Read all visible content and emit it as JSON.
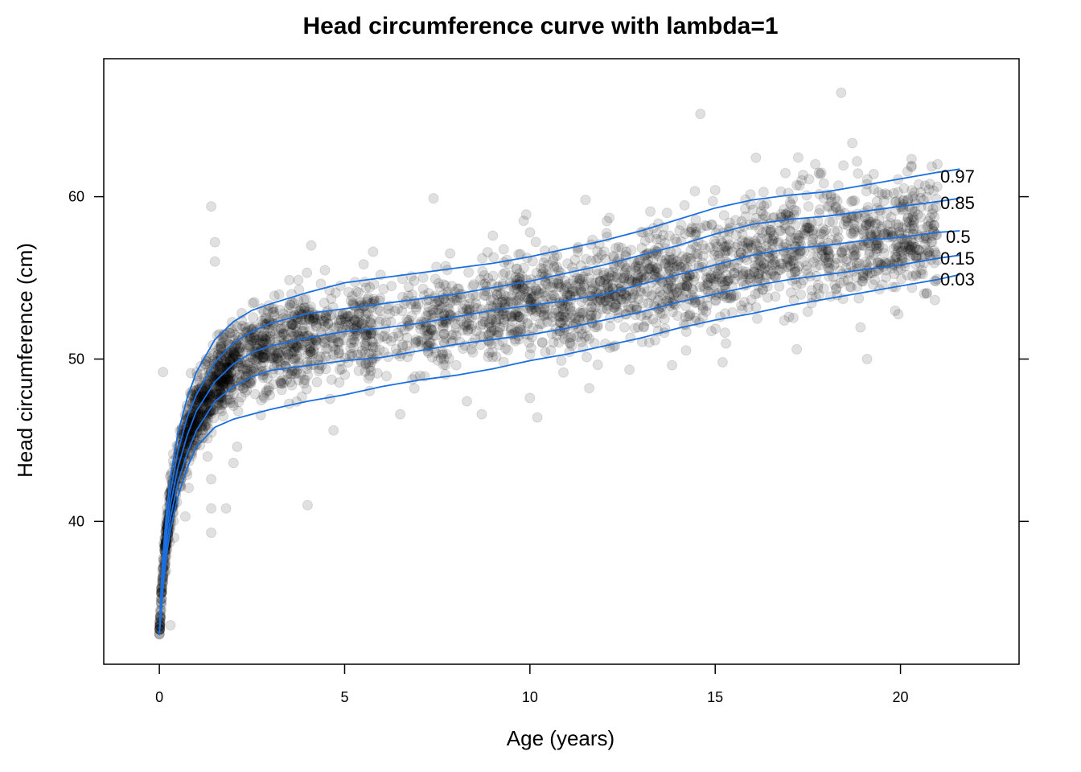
{
  "chart_data": {
    "type": "scatter",
    "title": "Head circumference curve with lambda=1",
    "xlabel": "Age (years)",
    "ylabel": "Head circumference (cm)",
    "xlim": [
      -1.5,
      23.2
    ],
    "ylim": [
      31.2,
      68.5
    ],
    "x_ticks": [
      0,
      5,
      10,
      15,
      20
    ],
    "x_tick_labels": [
      "0",
      "5",
      "10",
      "15",
      "20"
    ],
    "y_ticks": [
      40,
      50,
      60
    ],
    "y_tick_labels": [
      "40",
      "50",
      "60"
    ],
    "grid": false,
    "legend": "none",
    "point_color": "#000000",
    "point_opacity": 0.12,
    "curve_color": "#1a6fe0",
    "outlier_points": [
      {
        "x": 18.4,
        "y": 66.4
      },
      {
        "x": 14.6,
        "y": 65.1
      },
      {
        "x": 18.7,
        "y": 63.3
      },
      {
        "x": 16.1,
        "y": 62.4
      },
      {
        "x": 1.4,
        "y": 59.4
      },
      {
        "x": 1.5,
        "y": 57.2
      },
      {
        "x": 1.5,
        "y": 56.0
      },
      {
        "x": 4.1,
        "y": 57.0
      },
      {
        "x": 7.4,
        "y": 59.9
      },
      {
        "x": 9.9,
        "y": 58.9
      },
      {
        "x": 11.5,
        "y": 59.8
      },
      {
        "x": 4.0,
        "y": 41.0
      },
      {
        "x": 1.4,
        "y": 39.3
      },
      {
        "x": 1.8,
        "y": 40.8
      },
      {
        "x": 1.4,
        "y": 40.8
      },
      {
        "x": 2.0,
        "y": 43.6
      },
      {
        "x": 4.7,
        "y": 45.6
      },
      {
        "x": 10.2,
        "y": 46.4
      },
      {
        "x": 6.5,
        "y": 46.6
      },
      {
        "x": 8.7,
        "y": 46.6
      },
      {
        "x": 10.0,
        "y": 47.6
      },
      {
        "x": 0.3,
        "y": 33.6
      },
      {
        "x": 0.0,
        "y": 33.8
      },
      {
        "x": 0.1,
        "y": 49.2
      },
      {
        "x": 1.4,
        "y": 42.6
      },
      {
        "x": 19.1,
        "y": 50.0
      },
      {
        "x": 15.2,
        "y": 49.8
      },
      {
        "x": 17.2,
        "y": 50.6
      },
      {
        "x": 11.6,
        "y": 48.2
      },
      {
        "x": 8.3,
        "y": 47.4
      },
      {
        "x": 1.3,
        "y": 44.0
      },
      {
        "x": 2.1,
        "y": 44.6
      },
      {
        "x": 0.7,
        "y": 40.3
      },
      {
        "x": 0.4,
        "y": 39.0
      },
      {
        "x": 21.0,
        "y": 62.0
      },
      {
        "x": 20.3,
        "y": 61.9
      },
      {
        "x": 17.7,
        "y": 62.0
      },
      {
        "x": 15.0,
        "y": 60.4
      },
      {
        "x": 13.7,
        "y": 59.0
      },
      {
        "x": 9.0,
        "y": 57.6
      }
    ],
    "series": [
      {
        "name": "0.97",
        "x": [
          0,
          0.05,
          0.1,
          0.2,
          0.3,
          0.5,
          0.75,
          1.0,
          1.5,
          2.0,
          2.5,
          3,
          4,
          5,
          6,
          7,
          8,
          9,
          10,
          11,
          12,
          13,
          14,
          15,
          16,
          17,
          18,
          19,
          20,
          21,
          21.6
        ],
        "y": [
          33.0,
          36.0,
          38.0,
          40.7,
          42.7,
          45.4,
          47.6,
          49.2,
          51.2,
          52.3,
          53.0,
          53.4,
          54.1,
          54.7,
          55.0,
          55.3,
          55.6,
          55.9,
          56.3,
          56.8,
          57.3,
          57.9,
          58.6,
          59.3,
          59.8,
          60.1,
          60.3,
          60.7,
          61.1,
          61.5,
          61.7
        ]
      },
      {
        "name": "0.85",
        "x": [
          0,
          0.05,
          0.1,
          0.2,
          0.3,
          0.5,
          0.75,
          1.0,
          1.5,
          2.0,
          2.5,
          3,
          4,
          5,
          6,
          7,
          8,
          9,
          10,
          11,
          12,
          13,
          14,
          15,
          16,
          17,
          18,
          19,
          20,
          21,
          21.6
        ],
        "y": [
          33.0,
          35.6,
          37.5,
          40.0,
          41.8,
          44.3,
          46.4,
          47.8,
          49.8,
          51.0,
          51.7,
          52.2,
          52.8,
          53.1,
          53.4,
          53.7,
          54.0,
          54.4,
          54.8,
          55.3,
          55.8,
          56.4,
          57.0,
          57.7,
          58.3,
          58.6,
          58.8,
          59.1,
          59.4,
          59.7,
          59.9
        ]
      },
      {
        "name": "0.5",
        "x": [
          0,
          0.05,
          0.1,
          0.2,
          0.3,
          0.5,
          0.75,
          1.0,
          1.5,
          2.0,
          2.5,
          3,
          4,
          5,
          6,
          7,
          8,
          9,
          10,
          11,
          12,
          13,
          14,
          15,
          16,
          17,
          18,
          19,
          20,
          21,
          21.6
        ],
        "y": [
          33.0,
          35.2,
          36.9,
          39.3,
          41.0,
          43.3,
          45.3,
          46.8,
          48.6,
          49.7,
          50.4,
          50.8,
          51.3,
          51.7,
          51.9,
          52.2,
          52.6,
          53.0,
          53.3,
          53.6,
          54.0,
          54.6,
          55.2,
          55.8,
          56.4,
          56.8,
          57.0,
          57.3,
          57.5,
          57.8,
          57.9
        ]
      },
      {
        "name": "0.15",
        "x": [
          0,
          0.05,
          0.1,
          0.2,
          0.3,
          0.5,
          0.75,
          1.0,
          1.5,
          2.0,
          2.5,
          3,
          4,
          5,
          6,
          7,
          8,
          9,
          10,
          11,
          12,
          13,
          14,
          15,
          16,
          17,
          18,
          19,
          20,
          21,
          21.6
        ],
        "y": [
          33.0,
          34.8,
          36.4,
          38.6,
          40.2,
          42.4,
          44.2,
          45.6,
          47.4,
          48.3,
          48.9,
          49.3,
          49.6,
          49.9,
          50.1,
          50.5,
          50.9,
          51.2,
          51.5,
          51.9,
          52.4,
          52.9,
          53.5,
          54.0,
          54.5,
          54.9,
          55.2,
          55.5,
          55.8,
          56.2,
          56.4
        ]
      },
      {
        "name": "0.03",
        "x": [
          0,
          0.05,
          0.1,
          0.2,
          0.3,
          0.5,
          0.75,
          1.0,
          1.5,
          2.0,
          2.5,
          3,
          4,
          5,
          6,
          7,
          8,
          9,
          10,
          11,
          12,
          13,
          14,
          15,
          16,
          17,
          18,
          19,
          20,
          21,
          21.6
        ],
        "y": [
          33.0,
          34.4,
          35.9,
          38.0,
          39.5,
          41.5,
          43.3,
          44.6,
          45.8,
          46.3,
          46.6,
          46.9,
          47.4,
          47.8,
          48.3,
          48.7,
          49.0,
          49.4,
          49.9,
          50.3,
          50.8,
          51.3,
          51.9,
          52.4,
          52.8,
          53.3,
          53.7,
          54.1,
          54.5,
          54.9,
          55.2
        ]
      }
    ]
  }
}
